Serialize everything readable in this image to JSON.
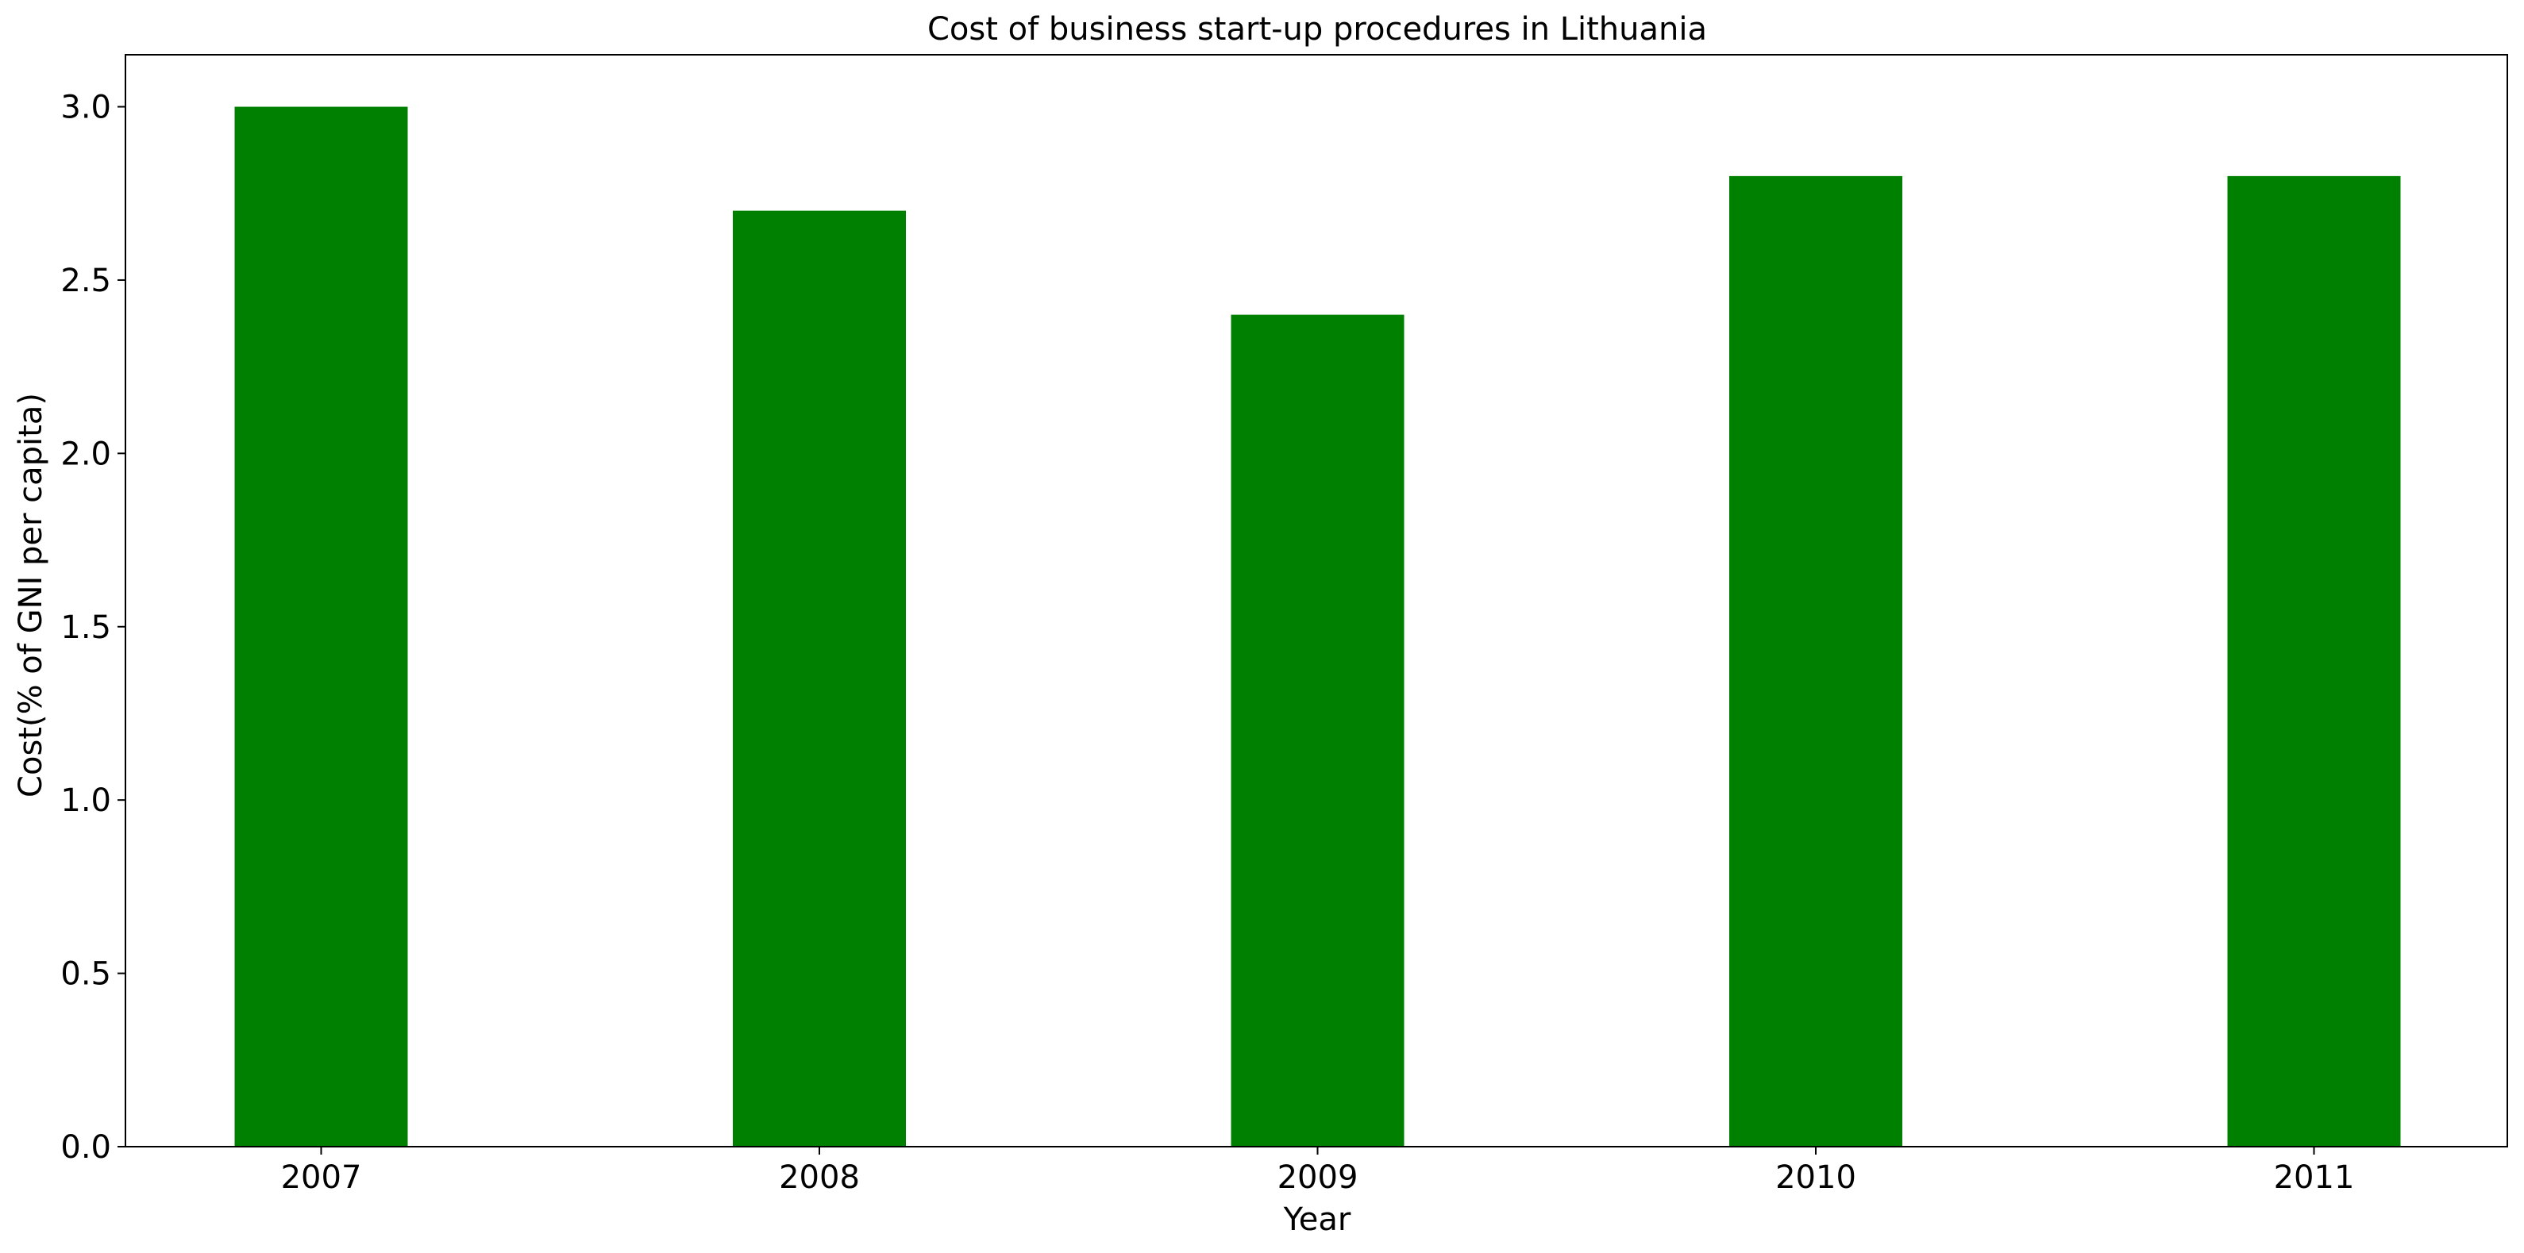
{
  "chart_data": {
    "type": "bar",
    "title": "Cost of business start-up procedures in Lithuania",
    "xlabel": "Year",
    "ylabel": "Cost(% of GNI per capita)",
    "categories": [
      "2007",
      "2008",
      "2009",
      "2010",
      "2011"
    ],
    "values": [
      3.0,
      2.7,
      2.4,
      2.8,
      2.8
    ],
    "ylim": [
      0,
      3.15
    ],
    "yticks": [
      "0.0",
      "0.5",
      "1.0",
      "1.5",
      "2.0",
      "2.5",
      "3.0"
    ],
    "bar_color": "#008000",
    "grid": false,
    "legend": "none"
  }
}
